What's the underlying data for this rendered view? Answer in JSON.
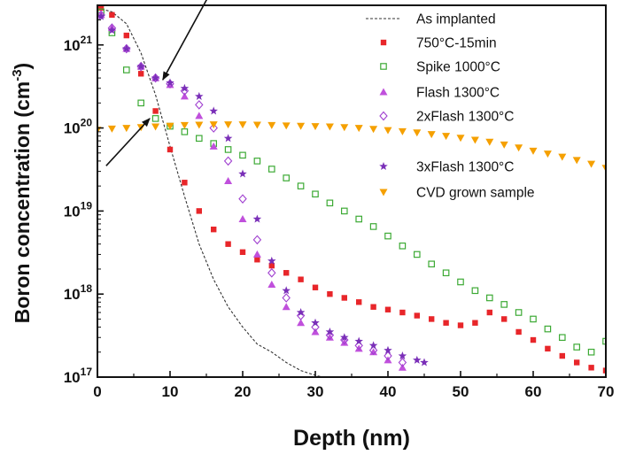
{
  "chart_data": {
    "type": "scatter",
    "xlabel": "Depth (nm)",
    "ylabel": "Boron concentration (cm",
    "ylabel_sup": "-3",
    "ylabel_close": ")",
    "xlim": [
      0,
      70
    ],
    "ylim": [
      1e+17,
      3e+21
    ],
    "yscale": "log",
    "grid": false,
    "legend_placement": "top-right",
    "x_ticks": [
      0,
      10,
      20,
      30,
      40,
      50,
      60,
      70
    ],
    "x_tick_labels": [
      "0",
      "10",
      "20",
      "30",
      "40",
      "50",
      "60",
      "70"
    ],
    "y_ticks": [
      1e+17,
      1e+18,
      1e+19,
      1e+20,
      1e+21
    ],
    "y_tick_base": "10",
    "y_tick_exponents": [
      "17",
      "18",
      "19",
      "20",
      "21"
    ],
    "annotations": [
      {
        "type": "arrow",
        "from": [
          16,
          5e+21
        ],
        "to": [
          9,
          3.8e+20
        ]
      },
      {
        "type": "arrow",
        "from": [
          1.2,
          3.5e+19
        ],
        "to": [
          7.2,
          1.3e+20
        ]
      }
    ],
    "series": [
      {
        "name": "As implanted",
        "marker": "dashed-line",
        "color": "#333333",
        "x": [
          0,
          2,
          4,
          6,
          8,
          10,
          12,
          14,
          16,
          18,
          20,
          22,
          24,
          26,
          28,
          30,
          31
        ],
        "y": [
          2.8e+21,
          2.5e+21,
          1.8e+21,
          8e+20,
          2.5e+20,
          6e+19,
          1.5e+19,
          4e+18,
          1.5e+18,
          7e+17,
          4e+17,
          2.5e+17,
          2e+17,
          1.5e+17,
          1.2e+17,
          1.05e+17,
          1e+17
        ]
      },
      {
        "name": "750°C-15min",
        "marker": "square-filled",
        "color": "#e8262a",
        "x": [
          0.5,
          2,
          4,
          6,
          8,
          10,
          12,
          14,
          16,
          18,
          20,
          22,
          24,
          26,
          28,
          30,
          32,
          34,
          36,
          38,
          40,
          42,
          44,
          46,
          48,
          50,
          52,
          54,
          56,
          58,
          60,
          62,
          64,
          66,
          68,
          70
        ],
        "y": [
          2.8e+21,
          2.3e+21,
          1.3e+21,
          4.5e+20,
          1.6e+20,
          5.5e+19,
          2.2e+19,
          1e+19,
          6e+18,
          4e+18,
          3.2e+18,
          2.6e+18,
          2.2e+18,
          1.8e+18,
          1.5e+18,
          1.2e+18,
          1e+18,
          9e+17,
          8e+17,
          7e+17,
          6.5e+17,
          6e+17,
          5.5e+17,
          5e+17,
          4.5e+17,
          4.2e+17,
          4.5e+17,
          6e+17,
          5e+17,
          3.5e+17,
          2.8e+17,
          2.2e+17,
          1.8e+17,
          1.5e+17,
          1.3e+17,
          1.2e+17
        ]
      },
      {
        "name": "Spike 1000°C",
        "marker": "square-open",
        "color": "#3daa35",
        "x": [
          0.5,
          2,
          4,
          6,
          8,
          10,
          12,
          14,
          16,
          18,
          20,
          22,
          24,
          26,
          28,
          30,
          32,
          34,
          36,
          38,
          40,
          42,
          44,
          46,
          48,
          50,
          52,
          54,
          56,
          58,
          60,
          62,
          64,
          66,
          68,
          70
        ],
        "y": [
          2.5e+21,
          1.4e+21,
          5e+20,
          2e+20,
          1.3e+20,
          1.05e+20,
          9e+19,
          7.5e+19,
          6.5e+19,
          5.5e+19,
          4.7e+19,
          4e+19,
          3.2e+19,
          2.5e+19,
          2e+19,
          1.6e+19,
          1.25e+19,
          1e+19,
          8e+18,
          6.5e+18,
          5e+18,
          3.8e+18,
          3e+18,
          2.3e+18,
          1.8e+18,
          1.4e+18,
          1.1e+18,
          9e+17,
          7.5e+17,
          6e+17,
          5e+17,
          3.8e+17,
          3e+17,
          2.3e+17,
          2e+17,
          2.7e+17
        ]
      },
      {
        "name": "Flash 1300°C",
        "marker": "triangle-up",
        "color": "#c050dc",
        "x": [
          0.5,
          2,
          4,
          6,
          8,
          10,
          12,
          14,
          16,
          18,
          20,
          22,
          24,
          26,
          28,
          30,
          32,
          34,
          36,
          38,
          40,
          42
        ],
        "y": [
          2.3e+21,
          1.6e+21,
          9e+20,
          5.5e+20,
          4e+20,
          3.3e+20,
          2.4e+20,
          1.4e+20,
          6e+19,
          2.3e+19,
          8e+18,
          3e+18,
          1.3e+18,
          7e+17,
          4.5e+17,
          3.5e+17,
          3e+17,
          2.6e+17,
          2.2e+17,
          2e+17,
          1.6e+17,
          1.3e+17
        ]
      },
      {
        "name": "2xFlash 1300°C",
        "marker": "diamond-open",
        "color": "#a040d0",
        "x": [
          0.5,
          2,
          4,
          6,
          8,
          10,
          12,
          14,
          16,
          18,
          20,
          22,
          24,
          26,
          28,
          30,
          32,
          34,
          36,
          38,
          40,
          42
        ],
        "y": [
          2.3e+21,
          1.6e+21,
          9e+20,
          5.5e+20,
          4e+20,
          3.4e+20,
          2.8e+20,
          1.9e+20,
          1e+20,
          4e+19,
          1.4e+19,
          4.5e+18,
          1.8e+18,
          9e+17,
          5.5e+17,
          4e+17,
          3.2e+17,
          2.8e+17,
          2.4e+17,
          2.1e+17,
          1.8e+17,
          1.5e+17
        ]
      },
      {
        "name": "3xFlash 1300°C",
        "marker": "star",
        "color": "#7a2fb8",
        "x": [
          0.5,
          2,
          4,
          6,
          8,
          10,
          12,
          14,
          16,
          18,
          20,
          22,
          24,
          26,
          28,
          30,
          32,
          34,
          36,
          38,
          40,
          42,
          44,
          45
        ],
        "y": [
          2.2e+21,
          1.5e+21,
          9e+20,
          5.5e+20,
          4e+20,
          3.5e+20,
          3e+20,
          2.4e+20,
          1.6e+20,
          7.5e+19,
          2.8e+19,
          8e+18,
          2.5e+18,
          1.1e+18,
          6e+17,
          4.5e+17,
          3.5e+17,
          3e+17,
          2.7e+17,
          2.4e+17,
          2.1e+17,
          1.8e+17,
          1.6e+17,
          1.5e+17
        ]
      },
      {
        "name": "CVD grown sample",
        "marker": "triangle-down",
        "color": "#f5a000",
        "x": [
          0,
          2,
          4,
          6,
          8,
          10,
          12,
          14,
          16,
          18,
          20,
          22,
          24,
          26,
          28,
          30,
          32,
          34,
          36,
          38,
          40,
          42,
          44,
          46,
          48,
          50,
          52,
          54,
          56,
          58,
          60,
          62,
          64,
          66,
          68,
          70
        ],
        "y": [
          9.5e+19,
          9.8e+19,
          1e+20,
          1.02e+20,
          1.04e+20,
          1.06e+20,
          1.08e+20,
          1.09e+20,
          1.1e+20,
          1.1e+20,
          1.1e+20,
          1.09e+20,
          1.08e+20,
          1.07e+20,
          1.06e+20,
          1.05e+20,
          1.04e+20,
          1.02e+20,
          1e+20,
          9.7e+19,
          9.4e+19,
          9.1e+19,
          8.8e+19,
          8.4e+19,
          8e+19,
          7.6e+19,
          7.2e+19,
          6.8e+19,
          6.3e+19,
          5.8e+19,
          5.3e+19,
          4.9e+19,
          4.5e+19,
          4.1e+19,
          3.7e+19,
          3.3e+19
        ]
      }
    ]
  }
}
